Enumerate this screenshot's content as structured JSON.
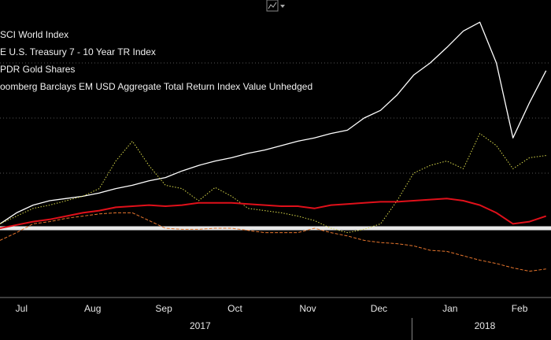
{
  "chart_data": {
    "type": "line",
    "legend_texts": [
      "SCI World Index",
      "E U.S. Treasury 7 - 10 Year TR Index",
      "PDR Gold Shares",
      "oomberg Barclays EM USD Aggregate Total Return Index Value Unhedged"
    ],
    "x": [
      0,
      1,
      2,
      3,
      4,
      5,
      6,
      7,
      8,
      9,
      10,
      11,
      12,
      13,
      14,
      15,
      16,
      17,
      18,
      19,
      20,
      21,
      22,
      23,
      24,
      25,
      26,
      27,
      28,
      29,
      30,
      31,
      32,
      33
    ],
    "xlim": [
      0,
      33.3
    ],
    "xticks": [
      {
        "value": 1.3,
        "label": "Jul"
      },
      {
        "value": 5.6,
        "label": "Aug"
      },
      {
        "value": 9.9,
        "label": "Sep"
      },
      {
        "value": 14.2,
        "label": "Oct"
      },
      {
        "value": 18.6,
        "label": "Nov"
      },
      {
        "value": 22.9,
        "label": "Dec"
      },
      {
        "value": 27.2,
        "label": "Jan"
      },
      {
        "value": 31.4,
        "label": "Feb"
      }
    ],
    "year_ticks": [
      {
        "value": 12.1,
        "label": "2017"
      },
      {
        "value": 29.3,
        "label": "2018"
      }
    ],
    "year_boundaries": [
      24.9
    ],
    "ylim": [
      -5,
      20
    ],
    "yticks": [
      5,
      10,
      15
    ],
    "grid": true,
    "series": [
      {
        "color": "#ffffff",
        "style": "solid",
        "width": 1.3,
        "values": [
          0.4,
          1.4,
          2.1,
          2.5,
          2.7,
          2.9,
          3.2,
          3.6,
          3.9,
          4.3,
          4.6,
          5.2,
          5.7,
          6.1,
          6.4,
          6.8,
          7.1,
          7.5,
          7.9,
          8.2,
          8.6,
          8.9,
          10.0,
          10.7,
          12.1,
          13.9,
          15.0,
          16.4,
          17.9,
          18.7,
          15.0,
          8.2,
          11.4,
          14.3
        ]
      },
      {
        "color": "#e8762d",
        "style": "dashed",
        "width": 1,
        "values": [
          -1.1,
          -0.4,
          0.4,
          0.6,
          0.9,
          1.1,
          1.3,
          1.4,
          1.4,
          0.7,
          0,
          -0.1,
          -0.1,
          0,
          0,
          -0.2,
          -0.4,
          -0.4,
          -0.4,
          0,
          -0.4,
          -0.7,
          -1.1,
          -1.3,
          -1.4,
          -1.6,
          -2,
          -2.1,
          -2.5,
          -2.9,
          -3.2,
          -3.6,
          -3.9,
          -3.7
        ]
      },
      {
        "color": "#d8d84a",
        "style": "dotted",
        "width": 1,
        "values": [
          0.4,
          1.1,
          1.8,
          2.1,
          2.5,
          2.9,
          3.6,
          6.1,
          7.9,
          5.7,
          3.9,
          3.6,
          2.5,
          3.7,
          2.9,
          1.8,
          1.6,
          1.4,
          1.1,
          0.7,
          0,
          -0.4,
          -0.1,
          0.4,
          2.5,
          5,
          5.7,
          6.1,
          5.4,
          8.6,
          7.5,
          5.4,
          6.4,
          6.6
        ]
      },
      {
        "color": "#e0101a",
        "style": "solid",
        "width": 2,
        "values": [
          0,
          0.3,
          0.6,
          0.8,
          1.1,
          1.4,
          1.6,
          1.9,
          2.0,
          2.1,
          2.0,
          2.1,
          2.3,
          2.3,
          2.3,
          2.2,
          2.1,
          2.0,
          2.0,
          1.8,
          2.1,
          2.2,
          2.3,
          2.4,
          2.4,
          2.5,
          2.6,
          2.7,
          2.5,
          2.1,
          1.4,
          0.4,
          0.6,
          1.1
        ]
      }
    ]
  }
}
